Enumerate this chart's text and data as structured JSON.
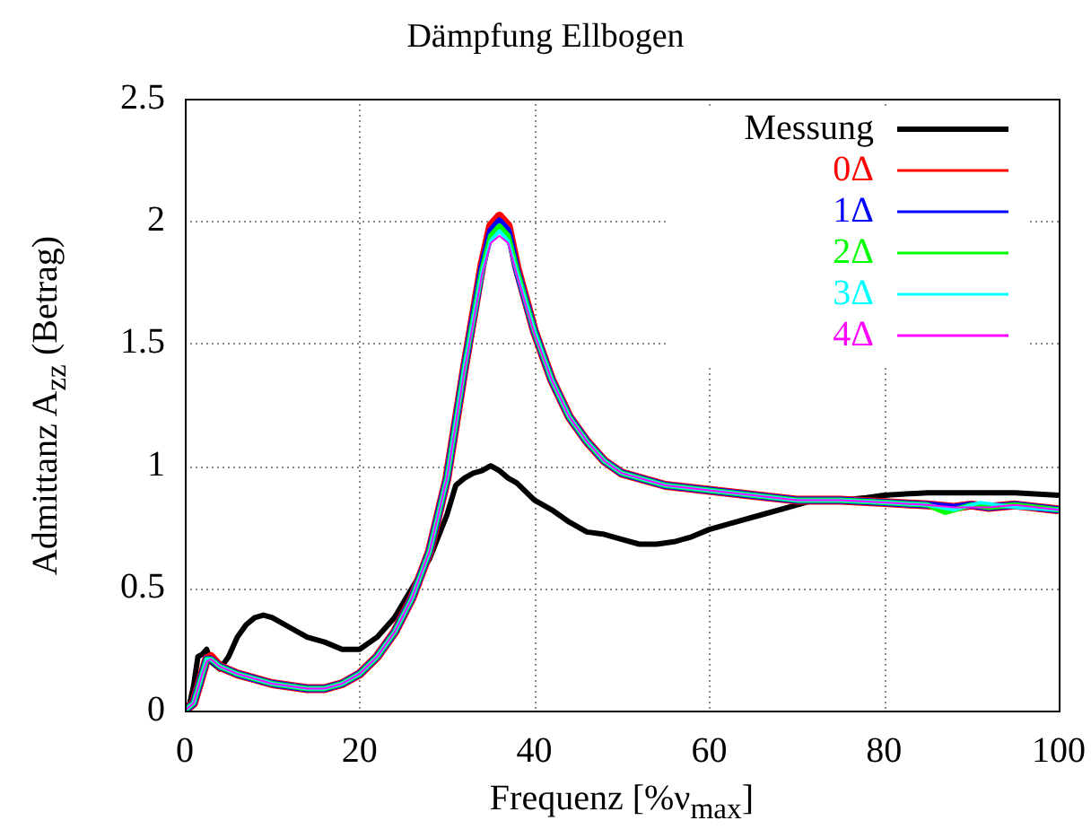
{
  "chart_data": {
    "type": "line",
    "title": "Dämpfung Ellbogen",
    "xlabel": "Frequenz [%ν$_{max}$]",
    "ylabel": "Admittanz A$_{zz}$ (Betrag)",
    "xlim": [
      0,
      100
    ],
    "xticks": [
      0,
      20,
      40,
      60,
      80,
      100
    ],
    "ylim": [
      0,
      2.5
    ],
    "yticks": [
      0,
      0.5,
      1,
      1.5,
      2,
      2.5
    ],
    "grid": true,
    "legend": "top right",
    "marker": "none",
    "line_style": "solid",
    "series": [
      {
        "name": "Messung",
        "color": "#000000",
        "x": [
          0,
          0.5,
          1,
          1.5,
          2,
          2.5,
          3,
          4,
          5,
          6,
          7,
          8,
          9,
          10,
          12,
          14,
          16,
          18,
          20,
          22,
          24,
          26,
          28,
          30,
          31,
          32,
          33,
          34,
          35,
          36,
          37,
          38,
          40,
          42,
          44,
          46,
          48,
          50,
          52,
          54,
          56,
          58,
          60,
          63,
          66,
          69,
          72,
          75,
          78,
          80,
          85,
          90,
          95,
          100
        ],
        "values": [
          0,
          0.02,
          0.1,
          0.22,
          0.23,
          0.25,
          0.2,
          0.17,
          0.22,
          0.3,
          0.35,
          0.38,
          0.39,
          0.38,
          0.34,
          0.3,
          0.28,
          0.25,
          0.25,
          0.3,
          0.38,
          0.5,
          0.62,
          0.8,
          0.92,
          0.95,
          0.97,
          0.98,
          1.0,
          0.98,
          0.95,
          0.93,
          0.86,
          0.82,
          0.77,
          0.73,
          0.72,
          0.7,
          0.68,
          0.68,
          0.69,
          0.71,
          0.74,
          0.77,
          0.8,
          0.83,
          0.86,
          0.86,
          0.87,
          0.88,
          0.89,
          0.89,
          0.89,
          0.88
        ]
      },
      {
        "name": "0Δ",
        "color": "#ff0000",
        "x": [
          0,
          1,
          2,
          2.5,
          3,
          4,
          6,
          8,
          10,
          12,
          14,
          16,
          18,
          20,
          22,
          24,
          26,
          28,
          30,
          32,
          34,
          35,
          36,
          37,
          38,
          40,
          42,
          44,
          46,
          48,
          50,
          55,
          60,
          65,
          70,
          75,
          80,
          85,
          88,
          90,
          92,
          95,
          100
        ],
        "values": [
          0,
          0.03,
          0.15,
          0.21,
          0.22,
          0.18,
          0.15,
          0.13,
          0.11,
          0.1,
          0.09,
          0.09,
          0.11,
          0.15,
          0.22,
          0.32,
          0.46,
          0.65,
          0.95,
          1.4,
          1.82,
          1.98,
          2.02,
          1.98,
          1.81,
          1.55,
          1.35,
          1.2,
          1.1,
          1.02,
          0.97,
          0.92,
          0.9,
          0.88,
          0.86,
          0.86,
          0.85,
          0.84,
          0.83,
          0.84,
          0.83,
          0.84,
          0.82
        ]
      },
      {
        "name": "1Δ",
        "color": "#0000ff",
        "x": [
          0,
          1,
          2,
          2.5,
          3,
          4,
          6,
          8,
          10,
          12,
          14,
          16,
          18,
          20,
          22,
          24,
          26,
          28,
          30,
          32,
          34,
          35,
          36,
          37,
          38,
          40,
          42,
          44,
          46,
          48,
          50,
          55,
          60,
          65,
          70,
          75,
          80,
          85,
          88,
          90,
          92,
          95,
          100
        ],
        "values": [
          0,
          0.03,
          0.15,
          0.21,
          0.21,
          0.18,
          0.15,
          0.13,
          0.11,
          0.1,
          0.09,
          0.09,
          0.11,
          0.15,
          0.22,
          0.32,
          0.46,
          0.65,
          0.95,
          1.4,
          1.81,
          1.96,
          2.0,
          1.96,
          1.8,
          1.55,
          1.35,
          1.2,
          1.1,
          1.02,
          0.97,
          0.92,
          0.9,
          0.88,
          0.86,
          0.86,
          0.85,
          0.84,
          0.83,
          0.84,
          0.83,
          0.84,
          0.82
        ]
      },
      {
        "name": "2Δ",
        "color": "#00ff00",
        "x": [
          0,
          1,
          2,
          2.5,
          3,
          4,
          6,
          8,
          10,
          12,
          14,
          16,
          18,
          20,
          22,
          24,
          26,
          28,
          30,
          32,
          34,
          35,
          36,
          37,
          38,
          40,
          42,
          44,
          46,
          48,
          50,
          55,
          60,
          65,
          70,
          75,
          80,
          85,
          87,
          90,
          92,
          95,
          100
        ],
        "values": [
          0,
          0.03,
          0.15,
          0.21,
          0.21,
          0.18,
          0.15,
          0.13,
          0.11,
          0.1,
          0.09,
          0.09,
          0.11,
          0.15,
          0.22,
          0.32,
          0.46,
          0.65,
          0.95,
          1.4,
          1.8,
          1.94,
          1.98,
          1.94,
          1.8,
          1.55,
          1.35,
          1.2,
          1.1,
          1.02,
          0.97,
          0.92,
          0.9,
          0.88,
          0.86,
          0.86,
          0.85,
          0.84,
          0.81,
          0.84,
          0.83,
          0.84,
          0.82
        ]
      },
      {
        "name": "3Δ",
        "color": "#00ffff",
        "x": [
          0,
          1,
          2,
          2.5,
          3,
          4,
          6,
          8,
          10,
          12,
          14,
          16,
          18,
          20,
          22,
          24,
          26,
          28,
          30,
          32,
          34,
          35,
          36,
          37,
          38,
          40,
          42,
          44,
          46,
          48,
          50,
          55,
          60,
          65,
          70,
          75,
          80,
          85,
          88,
          91,
          93,
          95,
          100
        ],
        "values": [
          0,
          0.03,
          0.15,
          0.21,
          0.21,
          0.18,
          0.15,
          0.13,
          0.11,
          0.1,
          0.09,
          0.09,
          0.11,
          0.15,
          0.22,
          0.32,
          0.46,
          0.65,
          0.95,
          1.4,
          1.79,
          1.92,
          1.96,
          1.92,
          1.79,
          1.55,
          1.35,
          1.2,
          1.1,
          1.02,
          0.97,
          0.92,
          0.9,
          0.88,
          0.86,
          0.86,
          0.85,
          0.84,
          0.82,
          0.85,
          0.84,
          0.83,
          0.82
        ]
      },
      {
        "name": "4Δ",
        "color": "#ff00ff",
        "x": [
          0,
          1,
          2,
          2.5,
          3,
          4,
          6,
          8,
          10,
          12,
          14,
          16,
          18,
          20,
          22,
          24,
          26,
          28,
          30,
          32,
          34,
          35,
          36,
          37,
          38,
          40,
          42,
          44,
          46,
          48,
          50,
          55,
          60,
          65,
          70,
          75,
          80,
          85,
          88,
          90,
          92,
          95,
          100
        ],
        "values": [
          0,
          0.03,
          0.15,
          0.2,
          0.21,
          0.18,
          0.15,
          0.13,
          0.11,
          0.1,
          0.09,
          0.09,
          0.11,
          0.15,
          0.22,
          0.32,
          0.46,
          0.65,
          0.95,
          1.39,
          1.78,
          1.91,
          1.94,
          1.91,
          1.78,
          1.54,
          1.35,
          1.2,
          1.1,
          1.02,
          0.97,
          0.92,
          0.9,
          0.88,
          0.86,
          0.86,
          0.85,
          0.84,
          0.83,
          0.83,
          0.83,
          0.84,
          0.82
        ]
      }
    ]
  }
}
